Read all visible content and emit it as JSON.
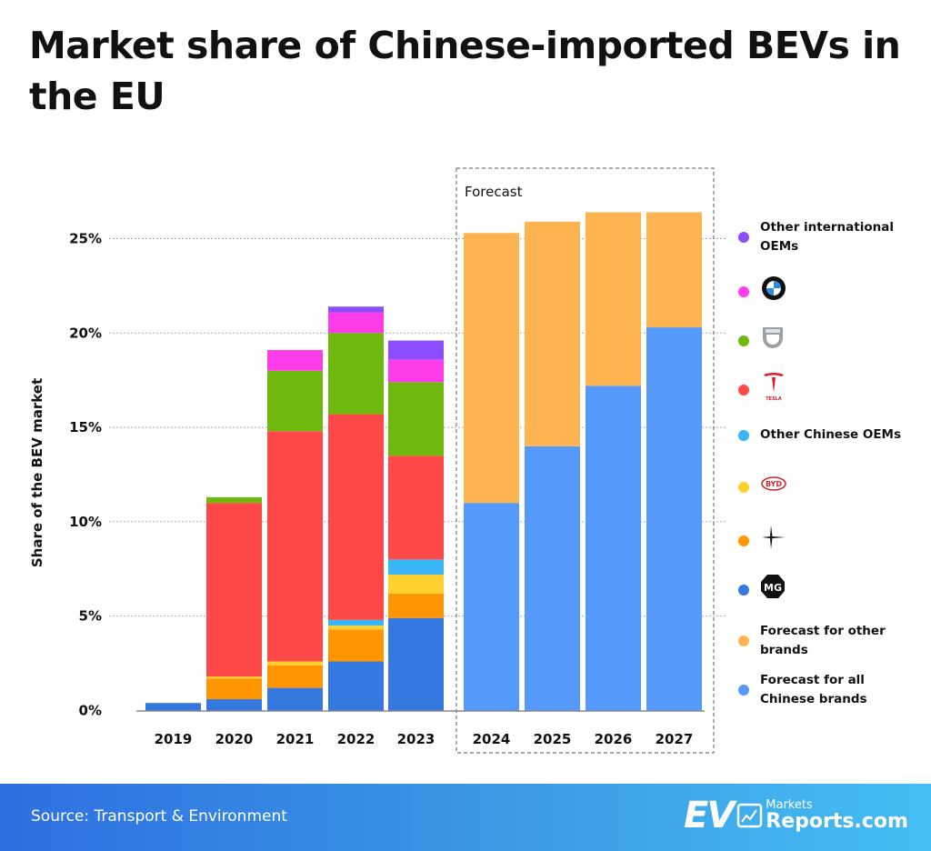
{
  "title": "Market share of Chinese-imported BEVs in the EU",
  "footer": {
    "source": "Source: Transport & Environment",
    "logo_text": "EV Markets Reports.com"
  },
  "chart_data": {
    "type": "bar",
    "stacked": true,
    "title": "Market share of Chinese-imported BEVs in the EU",
    "ylabel": "Share of the BEV market",
    "xlabel": "",
    "ylim": [
      0,
      27
    ],
    "yticks": [
      "0%",
      "5%",
      "10%",
      "15%",
      "20%",
      "25%"
    ],
    "ytick_values": [
      0,
      5,
      10,
      15,
      20,
      25
    ],
    "grid": "horizontal dotted",
    "legend_placement": "right",
    "forecast_label": "Forecast",
    "forecast_categories": [
      "2024",
      "2025",
      "2026",
      "2027"
    ],
    "categories": [
      "2019",
      "2020",
      "2021",
      "2022",
      "2023",
      "2024",
      "2025",
      "2026",
      "2027"
    ],
    "series": [
      {
        "key": "mg",
        "logo": "MG",
        "color": "#3578e0",
        "values": [
          0.4,
          0.6,
          1.2,
          2.6,
          4.9,
          0,
          0,
          0,
          0
        ]
      },
      {
        "key": "polestar",
        "logo": "Polestar",
        "color": "#ff9500",
        "values": [
          0,
          1.1,
          1.2,
          1.7,
          1.3,
          0,
          0,
          0,
          0
        ]
      },
      {
        "key": "byd",
        "logo": "BYD",
        "color": "#ffd12e",
        "values": [
          0,
          0.1,
          0.2,
          0.2,
          1.0,
          0,
          0,
          0,
          0
        ]
      },
      {
        "key": "other_chinese",
        "name": "Other Chinese OEMs",
        "color": "#38b6f8",
        "values": [
          0,
          0,
          0,
          0.3,
          0.8,
          0,
          0,
          0,
          0
        ]
      },
      {
        "key": "tesla",
        "logo": "TESLA",
        "color": "#ff4848",
        "values": [
          0,
          9.2,
          12.2,
          10.9,
          5.5,
          0,
          0,
          0,
          0
        ]
      },
      {
        "key": "dacia",
        "logo": "DACIA",
        "color": "#6fb90f",
        "values": [
          0,
          0.3,
          3.2,
          4.3,
          3.9,
          0,
          0,
          0,
          0
        ]
      },
      {
        "key": "bmw",
        "logo": "BMW",
        "color": "#ff3de8",
        "values": [
          0,
          0,
          1.1,
          1.1,
          1.2,
          0,
          0,
          0,
          0
        ]
      },
      {
        "key": "other_international",
        "name": "Other international OEMs",
        "color": "#8a4dff",
        "values": [
          0,
          0,
          0,
          0.3,
          1.0,
          0,
          0,
          0,
          0
        ]
      },
      {
        "key": "forecast_chinese",
        "name": "Forecast for all Chinese brands",
        "color": "#5599fb",
        "values": [
          0,
          0,
          0,
          0,
          0,
          11.0,
          14.0,
          17.2,
          20.3
        ]
      },
      {
        "key": "forecast_other",
        "name": "Forecast for other brands",
        "color": "#ffb452",
        "values": [
          0,
          0,
          0,
          0,
          0,
          14.3,
          11.9,
          9.2,
          6.1
        ]
      }
    ],
    "legend": [
      {
        "label": "Other international OEMs",
        "color": "#8a4dff"
      },
      {
        "logo": "BMW",
        "color": "#ff3de8"
      },
      {
        "logo": "DACIA",
        "color": "#6fb90f"
      },
      {
        "logo": "TESLA",
        "color": "#ff4848"
      },
      {
        "label": "Other Chinese OEMs",
        "color": "#38b6f8"
      },
      {
        "logo": "BYD",
        "color": "#ffd12e"
      },
      {
        "logo": "Polestar",
        "color": "#ff9500"
      },
      {
        "logo": "MG",
        "color": "#3578e0"
      },
      {
        "label": "Forecast for other brands",
        "color": "#ffb452"
      },
      {
        "label": "Forecast for all Chinese brands",
        "color": "#5599fb"
      }
    ]
  }
}
